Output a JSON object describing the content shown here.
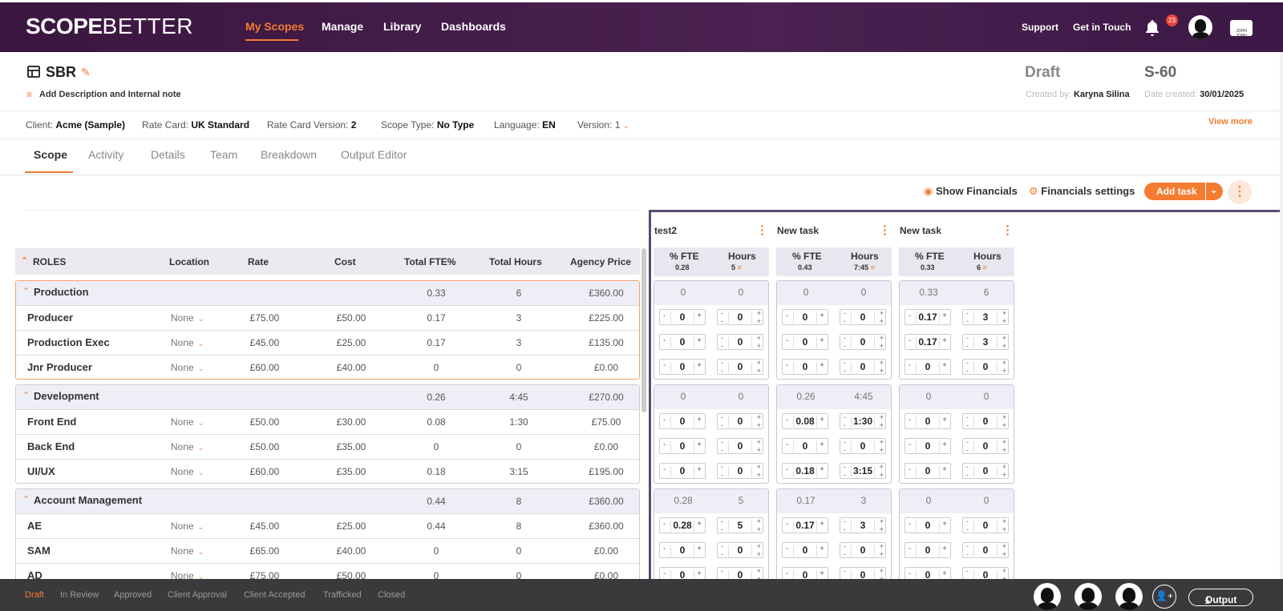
{
  "app": {
    "logo_main": "SCOPE",
    "logo_sub": "BETTER"
  },
  "nav": {
    "my_scopes": "My Scopes",
    "manage": "Manage",
    "library": "Library",
    "dashboards": "Dashboards",
    "support": "Support",
    "get_in_touch": "Get in Touch",
    "notif_count": "23",
    "corp_logo": "JOHN JOHN"
  },
  "scope": {
    "title": "SBR",
    "add_desc": "Add Description and Internal note",
    "status": "Draft",
    "id": "S-60",
    "created_by_label": "Created by:",
    "created_by": "Karyna Silina",
    "date_label": "Date created:",
    "date": "30/01/2025"
  },
  "info": {
    "client_label": "Client:",
    "client": "Acme (Sample)",
    "ratecard_label": "Rate Card:",
    "ratecard": "UK Standard",
    "rcv_label": "Rate Card Version:",
    "rcv": "2",
    "type_label": "Scope Type:",
    "type": "No Type",
    "lang_label": "Language:",
    "lang": "EN",
    "version_label": "Version:",
    "version": "1",
    "view_more": "View more"
  },
  "tabs": [
    "Scope",
    "Activity",
    "Details",
    "Team",
    "Breakdown",
    "Output Editor"
  ],
  "actions": {
    "show_fin": "Show Financials",
    "fin_settings": "Financials settings",
    "add_task": "Add task"
  },
  "table_headers": {
    "roles": "ROLES",
    "location": "Location",
    "rate": "Rate",
    "cost": "Cost",
    "fte": "Total FTE%",
    "hours": "Total Hours",
    "price": "Agency Price"
  },
  "groups": [
    {
      "name": "Production",
      "fte": "0.33",
      "hours": "6",
      "price": "£360.00",
      "rows": [
        {
          "name": "Producer",
          "loc": "None",
          "rate": "£75.00",
          "cost": "£50.00",
          "fte": "0.17",
          "hours": "3",
          "price": "£225.00"
        },
        {
          "name": "Production Exec",
          "loc": "None",
          "rate": "£45.00",
          "cost": "£25.00",
          "fte": "0.17",
          "hours": "3",
          "price": "£135.00"
        },
        {
          "name": "Jnr Producer",
          "loc": "None",
          "rate": "£60.00",
          "cost": "£40.00",
          "fte": "0",
          "hours": "0",
          "price": "£0.00"
        }
      ]
    },
    {
      "name": "Development",
      "fte": "0.26",
      "hours": "4:45",
      "price": "£270.00",
      "rows": [
        {
          "name": "Front End",
          "loc": "None",
          "rate": "£50.00",
          "cost": "£30.00",
          "fte": "0.08",
          "hours": "1:30",
          "price": "£75.00"
        },
        {
          "name": "Back End",
          "loc": "None",
          "rate": "£50.00",
          "cost": "£35.00",
          "fte": "0",
          "hours": "0",
          "price": "£0.00"
        },
        {
          "name": "UI/UX",
          "loc": "None",
          "rate": "£60.00",
          "cost": "£35.00",
          "fte": "0.18",
          "hours": "3:15",
          "price": "£195.00"
        }
      ]
    },
    {
      "name": "Account Management",
      "fte": "0.44",
      "hours": "8",
      "price": "£360.00",
      "rows": [
        {
          "name": "AE",
          "loc": "None",
          "rate": "£45.00",
          "cost": "£25.00",
          "fte": "0.44",
          "hours": "8",
          "price": "£360.00"
        },
        {
          "name": "SAM",
          "loc": "None",
          "rate": "£65.00",
          "cost": "£40.00",
          "fte": "0",
          "hours": "0",
          "price": "£0.00"
        },
        {
          "name": "AD",
          "loc": "None",
          "rate": "£75.00",
          "cost": "£50.00",
          "fte": "0",
          "hours": "0",
          "price": "£0.00"
        }
      ]
    }
  ],
  "task_headers": {
    "fte": "% FTE",
    "hours": "Hours"
  },
  "tasks": [
    {
      "name": "test2",
      "fte_total": "0.28",
      "hours_total": "5",
      "groups": [
        {
          "fte": "0",
          "hours": "0",
          "rows": [
            [
              "0",
              "0"
            ],
            [
              "0",
              "0"
            ],
            [
              "0",
              "0"
            ]
          ]
        },
        {
          "fte": "0",
          "hours": "0",
          "rows": [
            [
              "0",
              "0"
            ],
            [
              "0",
              "0"
            ],
            [
              "0",
              "0"
            ]
          ]
        },
        {
          "fte": "0.28",
          "hours": "5",
          "rows": [
            [
              "0.28",
              "5"
            ],
            [
              "0",
              "0"
            ],
            [
              "0",
              "0"
            ]
          ]
        }
      ]
    },
    {
      "name": "New task",
      "fte_total": "0.43",
      "hours_total": "7:45",
      "groups": [
        {
          "fte": "0",
          "hours": "0",
          "rows": [
            [
              "0",
              "0"
            ],
            [
              "0",
              "0"
            ],
            [
              "0",
              "0"
            ]
          ]
        },
        {
          "fte": "0.26",
          "hours": "4:45",
          "rows": [
            [
              "0.08",
              "1:30"
            ],
            [
              "0",
              "0"
            ],
            [
              "0.18",
              "3:15"
            ]
          ]
        },
        {
          "fte": "0.17",
          "hours": "3",
          "rows": [
            [
              "0.17",
              "3"
            ],
            [
              "0",
              "0"
            ],
            [
              "0",
              "0"
            ]
          ]
        }
      ]
    },
    {
      "name": "New task",
      "fte_total": "0.33",
      "hours_total": "6",
      "groups": [
        {
          "fte": "0.33",
          "hours": "6",
          "rows": [
            [
              "0.17",
              "3"
            ],
            [
              "0.17",
              "3"
            ],
            [
              "0",
              "0"
            ]
          ]
        },
        {
          "fte": "0",
          "hours": "0",
          "rows": [
            [
              "0",
              "0"
            ],
            [
              "0",
              "0"
            ],
            [
              "0",
              "0"
            ]
          ]
        },
        {
          "fte": "0",
          "hours": "0",
          "rows": [
            [
              "0",
              "0"
            ],
            [
              "0",
              "0"
            ],
            [
              "0",
              "0"
            ]
          ]
        }
      ]
    }
  ],
  "footer": {
    "statuses": [
      "Draft",
      "In Review",
      "Approved",
      "Client Approval",
      "Client Accepted",
      "Trafficked",
      "Closed"
    ],
    "output": "Output"
  },
  "colors": {
    "accent": "#f47c30",
    "header": "#3b1640",
    "divider": "#5b4a73"
  }
}
